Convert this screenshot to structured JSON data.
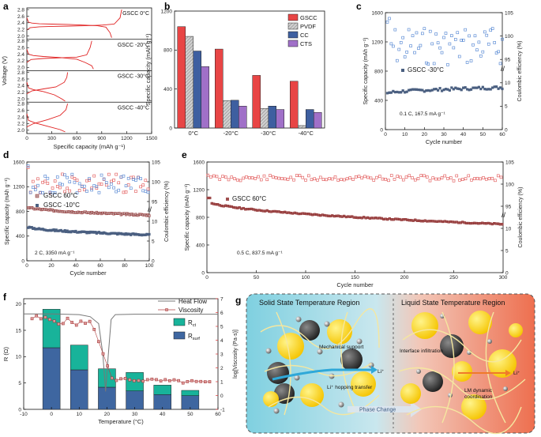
{
  "figure": {
    "panels": [
      "a",
      "b",
      "c",
      "d",
      "e",
      "f",
      "g"
    ]
  },
  "chart_data": [
    {
      "panel": "a",
      "type": "line",
      "xlabel": "Specific capacity (mAh g⁻¹)",
      "ylabel": "Voltage (V)",
      "xlim": [
        0,
        1500
      ],
      "x_ticks": [
        "0",
        "300",
        "600",
        "900",
        "1200",
        "1500"
      ],
      "y_ticks": [
        "2.8",
        "2.6",
        "2.4",
        "2.2",
        "2.0"
      ],
      "color": "#e02020",
      "subplots": [
        {
          "label": "GSCC 0°C",
          "ylim": [
            1.9,
            2.85
          ],
          "discharge": [
            [
              0,
              2.55
            ],
            [
              20,
              2.42
            ],
            [
              60,
              2.39
            ],
            [
              150,
              2.37
            ],
            [
              300,
              2.36
            ],
            [
              500,
              2.35
            ],
            [
              700,
              2.33
            ],
            [
              850,
              2.31
            ],
            [
              950,
              2.27
            ],
            [
              1000,
              2.1
            ],
            [
              1020,
              1.95
            ]
          ],
          "charge": [
            [
              0,
              2.18
            ],
            [
              40,
              2.25
            ],
            [
              150,
              2.28
            ],
            [
              300,
              2.29
            ],
            [
              500,
              2.3
            ],
            [
              700,
              2.31
            ],
            [
              900,
              2.33
            ],
            [
              1050,
              2.36
            ],
            [
              1120,
              2.55
            ],
            [
              1140,
              2.8
            ]
          ]
        },
        {
          "label": "GSCC -20°C",
          "ylim": [
            1.9,
            2.85
          ],
          "discharge": [
            [
              0,
              2.55
            ],
            [
              20,
              2.4
            ],
            [
              80,
              2.36
            ],
            [
              200,
              2.33
            ],
            [
              400,
              2.3
            ],
            [
              600,
              2.25
            ],
            [
              700,
              2.15
            ],
            [
              780,
              2.05
            ],
            [
              800,
              1.95
            ]
          ],
          "charge": [
            [
              0,
              2.15
            ],
            [
              50,
              2.24
            ],
            [
              200,
              2.27
            ],
            [
              400,
              2.29
            ],
            [
              600,
              2.31
            ],
            [
              720,
              2.38
            ],
            [
              760,
              2.6
            ],
            [
              780,
              2.8
            ]
          ]
        },
        {
          "label": "GSCC -30°C",
          "ylim": [
            1.9,
            2.85
          ],
          "discharge": [
            [
              0,
              2.5
            ],
            [
              20,
              2.33
            ],
            [
              80,
              2.28
            ],
            [
              200,
              2.22
            ],
            [
              330,
              2.12
            ],
            [
              420,
              2.0
            ],
            [
              460,
              1.93
            ]
          ],
          "charge": [
            [
              0,
              2.15
            ],
            [
              60,
              2.24
            ],
            [
              200,
              2.3
            ],
            [
              350,
              2.36
            ],
            [
              450,
              2.5
            ],
            [
              480,
              2.65
            ],
            [
              490,
              2.8
            ]
          ]
        },
        {
          "label": "GSCC -40°C",
          "ylim": [
            1.9,
            2.85
          ],
          "discharge": [
            [
              0,
              2.5
            ],
            [
              20,
              2.3
            ],
            [
              100,
              2.22
            ],
            [
              250,
              2.12
            ],
            [
              400,
              2.02
            ],
            [
              460,
              1.95
            ]
          ],
          "charge": [
            [
              0,
              2.1
            ],
            [
              80,
              2.2
            ],
            [
              250,
              2.32
            ],
            [
              400,
              2.45
            ],
            [
              470,
              2.62
            ],
            [
              490,
              2.8
            ]
          ]
        }
      ]
    },
    {
      "panel": "b",
      "type": "bar",
      "ylabel": "Specific capacity (mAh g⁻¹)",
      "categories": [
        "0°C",
        "-20°C",
        "-30°C",
        "-40°C"
      ],
      "ylim": [
        0,
        1200
      ],
      "y_ticks": [
        "0",
        "400",
        "800",
        "1200"
      ],
      "legend_position": "top-right",
      "series": [
        {
          "name": "GSCC",
          "color": "#e84545",
          "values": [
            1040,
            810,
            540,
            480
          ]
        },
        {
          "name": "PVDF",
          "color": "#b8b8b8",
          "values": [
            940,
            280,
            200,
            25
          ]
        },
        {
          "name": "CC",
          "color": "#3e5fa0",
          "values": [
            790,
            285,
            225,
            190
          ]
        },
        {
          "name": "CTS",
          "color": "#a070c8",
          "values": [
            630,
            225,
            190,
            160
          ]
        }
      ]
    },
    {
      "panel": "c",
      "type": "scatter",
      "xlabel": "Cycle number",
      "ylabel": "Specific capacity (mAh g⁻¹)",
      "y2label": "Coulombic efficiency (%)",
      "xlim": [
        0,
        60
      ],
      "ylim": [
        0,
        1600
      ],
      "x_ticks": [
        "0",
        "10",
        "20",
        "30",
        "40",
        "50",
        "60"
      ],
      "y_ticks": [
        "0",
        "400",
        "800",
        "1200",
        "1600"
      ],
      "y2_ticks": [
        "0",
        "5",
        "10",
        "95",
        "100",
        "105"
      ],
      "legend": "GSCC  -30°C",
      "annotation": "0.1 C, 167.5 mA g⁻¹",
      "series": [
        {
          "name": "capacity",
          "color": "#3e5a80",
          "values_first": 490,
          "values_last": 570
        },
        {
          "name": "coulombic efficiency",
          "color": "#4a7fd0",
          "range": [
            95,
            103
          ]
        }
      ]
    },
    {
      "panel": "d",
      "type": "scatter",
      "xlabel": "Cycle number",
      "ylabel": "Specific capacity (mAh g⁻¹)",
      "y2label": "Coulombic efficiency (%)",
      "xlim": [
        0,
        100
      ],
      "ylim": [
        0,
        1600
      ],
      "x_ticks": [
        "0",
        "20",
        "40",
        "60",
        "80",
        "100"
      ],
      "y_ticks": [
        "0",
        "400",
        "800",
        "1200",
        "1600"
      ],
      "y2_ticks": [
        "0",
        "5",
        "10",
        "95",
        "100",
        "105"
      ],
      "annotation": "2 C, 3350 mA g⁻¹",
      "series": [
        {
          "name": "GSCC  60°C",
          "color": "#c0392b",
          "capacity_start": 880,
          "capacity_end": 740
        },
        {
          "name": "GSCC  -10°C",
          "color": "#3e5a80",
          "capacity_start": 560,
          "capacity_end": 420
        }
      ]
    },
    {
      "panel": "e",
      "type": "scatter",
      "xlabel": "Cycle number",
      "ylabel": "Specific capacity (mAh g⁻¹)",
      "y2label": "Coulombic efficiency (%)",
      "xlim": [
        0,
        300
      ],
      "ylim": [
        0,
        1600
      ],
      "x_ticks": [
        "0",
        "50",
        "100",
        "150",
        "200",
        "250",
        "300"
      ],
      "y_ticks": [
        "0",
        "400",
        "800",
        "1200",
        "1600"
      ],
      "y2_ticks": [
        "0",
        "5",
        "10",
        "95",
        "100",
        "105"
      ],
      "legend": "GSCC 60°C",
      "annotation": "0.5 C, 837.5 mA g⁻¹",
      "series": [
        {
          "name": "GSCC 60°C",
          "color": "#8b2020",
          "capacity_start": 1080,
          "capacity_end": 700
        }
      ]
    },
    {
      "panel": "f",
      "type": "bar",
      "xlabel": "Temperature (°C)",
      "ylabel": "R (Ω)",
      "y2label": "log[Viscosity (Pa·s)]",
      "x_ticks": [
        "-10",
        "0",
        "10",
        "20",
        "30",
        "40",
        "50",
        "60"
      ],
      "y_ticks": [
        "0",
        "5",
        "10",
        "15",
        "20"
      ],
      "y2_ticks": [
        "-1",
        "0",
        "1",
        "2",
        "3",
        "4",
        "5",
        "6",
        "7"
      ],
      "categories": [
        0,
        10,
        20,
        30,
        40,
        50
      ],
      "series": [
        {
          "name": "Rsurf",
          "color": "#3e66a0",
          "values": [
            11.7,
            7.5,
            4.2,
            3.5,
            2.8,
            2.6
          ]
        },
        {
          "name": "Rct",
          "color": "#18b39a",
          "values": [
            7.3,
            4.7,
            3.5,
            3.5,
            1.8,
            1.0
          ]
        }
      ],
      "legend": [
        "Heat Flow",
        "Viscosity"
      ],
      "legend_r_ct": "R",
      "legend_r_ct_sub": "ct",
      "legend_r_surf": "R",
      "legend_r_surf_sub": "surf"
    }
  ],
  "diagram_g": {
    "left_title": "Solid State Temperature Region",
    "right_title": "Liquid State Temperature Region",
    "labels": [
      "Mechanical support",
      "Li⁺ hopping transfer",
      "Li⁺",
      "Interface infiltration",
      "LM dynamic coordination",
      "Li⁺"
    ],
    "arrow": "Phase Change"
  }
}
